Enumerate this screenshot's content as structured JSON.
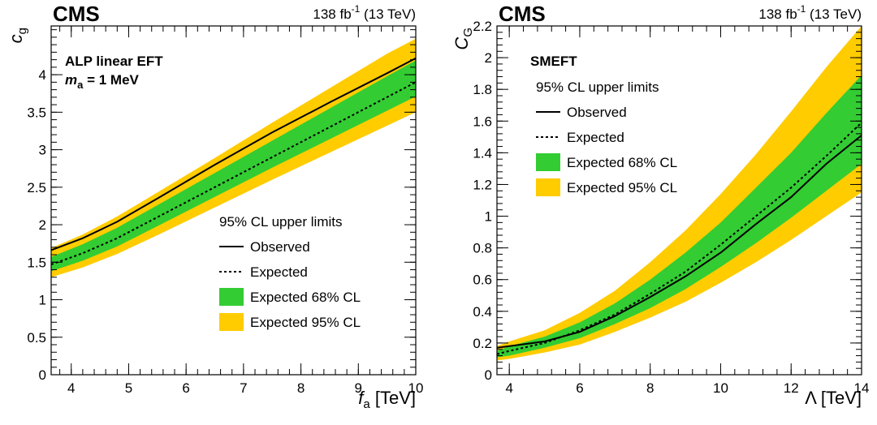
{
  "chart_data": [
    {
      "type": "line",
      "experiment": "CMS",
      "lumi_label": "138 fb",
      "lumi_sup": "-1",
      "energy_label": " (13 TeV)",
      "annotation_lines": [
        "ALP linear EFT",
        "m_a = 1 MeV"
      ],
      "annotation_mass": {
        "sym": "m",
        "sub": "a",
        "rest": " = 1 MeV"
      },
      "xlabel": {
        "sym": "f",
        "sub": "a",
        "rest": " [TeV]"
      },
      "ylabel": {
        "sym": "c",
        "sub": "g"
      },
      "xlim": [
        3.65,
        10
      ],
      "ylim": [
        0,
        4.65
      ],
      "xticks": [
        4,
        5,
        6,
        7,
        8,
        9,
        10
      ],
      "yticks": [
        0,
        0.5,
        1,
        1.5,
        2,
        2.5,
        3,
        3.5,
        4
      ],
      "legend": {
        "header": "95% CL upper limits",
        "entries": [
          "Observed",
          "Expected",
          "Expected 68% CL",
          "Expected 95% CL"
        ],
        "position": "bottom-right"
      },
      "colors": {
        "band68": "#33cc33",
        "band95": "#ffcc00",
        "observed": "#000000",
        "expected": "#000000"
      },
      "series": {
        "x": [
          3.65,
          4.2,
          4.8,
          5.5,
          6.5,
          7.5,
          8.5,
          9.5,
          10
        ],
        "observed": [
          1.66,
          1.82,
          2.04,
          2.35,
          2.8,
          3.23,
          3.63,
          4.02,
          4.22
        ],
        "expected": [
          1.47,
          1.62,
          1.82,
          2.1,
          2.5,
          2.9,
          3.3,
          3.7,
          3.9
        ],
        "band68_low": [
          1.38,
          1.52,
          1.71,
          1.98,
          2.37,
          2.76,
          3.14,
          3.52,
          3.71
        ],
        "band68_high": [
          1.57,
          1.74,
          1.96,
          2.26,
          2.69,
          3.12,
          3.55,
          3.98,
          4.19
        ],
        "band95_low": [
          1.3,
          1.43,
          1.61,
          1.86,
          2.23,
          2.6,
          2.96,
          3.32,
          3.5
        ],
        "band95_high": [
          1.69,
          1.87,
          2.11,
          2.43,
          2.89,
          3.36,
          3.82,
          4.28,
          4.48
        ]
      }
    },
    {
      "type": "line",
      "experiment": "CMS",
      "lumi_label": "138 fb",
      "lumi_sup": "-1",
      "energy_label": " (13 TeV)",
      "annotation_lines": [
        "SMEFT"
      ],
      "xlabel": {
        "sym": "Λ",
        "sub": "",
        "rest": " [TeV]"
      },
      "ylabel": {
        "sym": "C",
        "sub": "G"
      },
      "xlim": [
        3.65,
        14
      ],
      "ylim": [
        0,
        2.2
      ],
      "xticks": [
        4,
        6,
        8,
        10,
        12,
        14
      ],
      "yticks": [
        0,
        0.2,
        0.4,
        0.6,
        0.8,
        1,
        1.2,
        1.4,
        1.6,
        1.8,
        2,
        2.2
      ],
      "legend": {
        "header": "95% CL upper limits",
        "entries": [
          "Observed",
          "Expected",
          "Expected 68% CL",
          "Expected 95% CL"
        ],
        "position": "top-left"
      },
      "colors": {
        "band68": "#33cc33",
        "band95": "#ffcc00",
        "observed": "#000000",
        "expected": "#000000"
      },
      "series": {
        "x": [
          3.65,
          4,
          5,
          6,
          7,
          8,
          9,
          10,
          11,
          12,
          13,
          14
        ],
        "observed": [
          0.17,
          0.18,
          0.21,
          0.27,
          0.37,
          0.49,
          0.62,
          0.77,
          0.95,
          1.12,
          1.33,
          1.51
        ],
        "expected": [
          0.13,
          0.15,
          0.2,
          0.28,
          0.38,
          0.51,
          0.65,
          0.82,
          1.0,
          1.18,
          1.38,
          1.59
        ],
        "band68_low": [
          0.11,
          0.12,
          0.17,
          0.23,
          0.32,
          0.42,
          0.54,
          0.68,
          0.83,
          0.99,
          1.16,
          1.33
        ],
        "band68_high": [
          0.15,
          0.18,
          0.24,
          0.33,
          0.45,
          0.6,
          0.77,
          0.96,
          1.18,
          1.4,
          1.65,
          1.89
        ],
        "band95_low": [
          0.09,
          0.1,
          0.14,
          0.19,
          0.27,
          0.36,
          0.46,
          0.58,
          0.71,
          0.85,
          1.0,
          1.15
        ],
        "band95_high": [
          0.18,
          0.21,
          0.28,
          0.39,
          0.53,
          0.71,
          0.91,
          1.14,
          1.39,
          1.66,
          1.94,
          2.2
        ]
      }
    }
  ]
}
